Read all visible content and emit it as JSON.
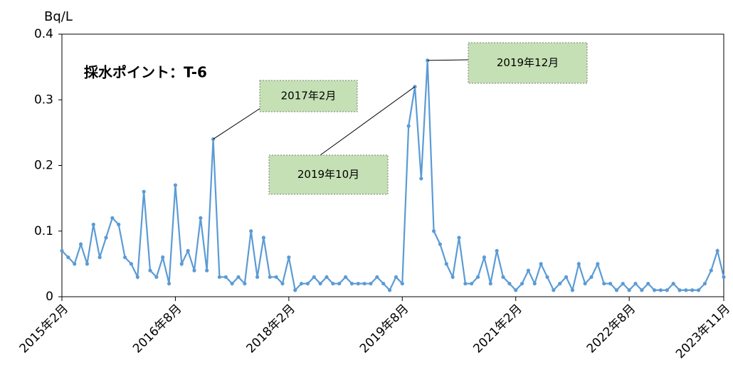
{
  "chart_data": {
    "type": "line",
    "title": "採水ポイント：T-6",
    "y_axis_label": "Bq/L",
    "xlim": [
      "2015-02",
      "2023-11"
    ],
    "xticks": [
      {
        "value": "2015-02",
        "label": "2015年2月"
      },
      {
        "value": "2016-08",
        "label": "2016年8月"
      },
      {
        "value": "2018-02",
        "label": "2018年2月"
      },
      {
        "value": "2019-08",
        "label": "2019年8月"
      },
      {
        "value": "2021-02",
        "label": "2021年2月"
      },
      {
        "value": "2022-08",
        "label": "2022年8月"
      },
      {
        "value": "2023-11",
        "label": "2023年11月"
      }
    ],
    "ylim": [
      0,
      0.4
    ],
    "yticks": [
      0,
      0.1,
      0.2,
      0.3,
      0.4
    ],
    "grid": false,
    "x": [
      "2015-02",
      "2015-03",
      "2015-04",
      "2015-05",
      "2015-06",
      "2015-07",
      "2015-08",
      "2015-09",
      "2015-10",
      "2015-11",
      "2015-12",
      "2016-01",
      "2016-02",
      "2016-03",
      "2016-04",
      "2016-05",
      "2016-06",
      "2016-07",
      "2016-08",
      "2016-09",
      "2016-10",
      "2016-11",
      "2016-12",
      "2017-01",
      "2017-02",
      "2017-03",
      "2017-04",
      "2017-05",
      "2017-06",
      "2017-07",
      "2017-08",
      "2017-09",
      "2017-10",
      "2017-11",
      "2017-12",
      "2018-01",
      "2018-02",
      "2018-03",
      "2018-04",
      "2018-05",
      "2018-06",
      "2018-07",
      "2018-08",
      "2018-09",
      "2018-10",
      "2018-11",
      "2018-12",
      "2019-01",
      "2019-02",
      "2019-03",
      "2019-04",
      "2019-05",
      "2019-06",
      "2019-07",
      "2019-08",
      "2019-09",
      "2019-10",
      "2019-11",
      "2019-12",
      "2020-01",
      "2020-02",
      "2020-03",
      "2020-04",
      "2020-05",
      "2020-06",
      "2020-07",
      "2020-08",
      "2020-09",
      "2020-10",
      "2020-11",
      "2020-12",
      "2021-01",
      "2021-02",
      "2021-03",
      "2021-04",
      "2021-05",
      "2021-06",
      "2021-07",
      "2021-08",
      "2021-09",
      "2021-10",
      "2021-11",
      "2021-12",
      "2022-01",
      "2022-02",
      "2022-03",
      "2022-04",
      "2022-05",
      "2022-06",
      "2022-07",
      "2022-08",
      "2022-09",
      "2022-10",
      "2022-11",
      "2022-12",
      "2023-01",
      "2023-02",
      "2023-03",
      "2023-04",
      "2023-05",
      "2023-06",
      "2023-07",
      "2023-08",
      "2023-09",
      "2023-10",
      "2023-11"
    ],
    "series": [
      {
        "name": "T-6",
        "color": "#5b9bd5",
        "values": [
          0.07,
          0.06,
          0.05,
          0.08,
          0.05,
          0.11,
          0.06,
          0.09,
          0.12,
          0.11,
          0.06,
          0.05,
          0.03,
          0.16,
          0.04,
          0.03,
          0.06,
          0.02,
          0.17,
          0.05,
          0.07,
          0.04,
          0.12,
          0.04,
          0.24,
          0.03,
          0.03,
          0.02,
          0.03,
          0.02,
          0.1,
          0.03,
          0.09,
          0.03,
          0.03,
          0.02,
          0.06,
          0.01,
          0.02,
          0.02,
          0.03,
          0.02,
          0.03,
          0.02,
          0.02,
          0.03,
          0.02,
          0.02,
          0.02,
          0.02,
          0.03,
          0.02,
          0.01,
          0.03,
          0.02,
          0.26,
          0.32,
          0.18,
          0.36,
          0.1,
          0.08,
          0.05,
          0.03,
          0.09,
          0.02,
          0.02,
          0.03,
          0.06,
          0.02,
          0.07,
          0.03,
          0.02,
          0.01,
          0.02,
          0.04,
          0.02,
          0.05,
          0.03,
          0.01,
          0.02,
          0.03,
          0.01,
          0.05,
          0.02,
          0.03,
          0.05,
          0.02,
          0.02,
          0.01,
          0.02,
          0.01,
          0.02,
          0.01,
          0.02,
          0.01,
          0.01,
          0.01,
          0.02,
          0.01,
          0.01,
          0.01,
          0.01,
          0.02,
          0.04,
          0.07,
          0.03
        ]
      }
    ],
    "annotations": [
      {
        "text": "2017年2月",
        "x": "2017-02"
      },
      {
        "text": "2019年10月",
        "x": "2019-10"
      },
      {
        "text": "2019年12月",
        "x": "2019-12"
      }
    ]
  }
}
